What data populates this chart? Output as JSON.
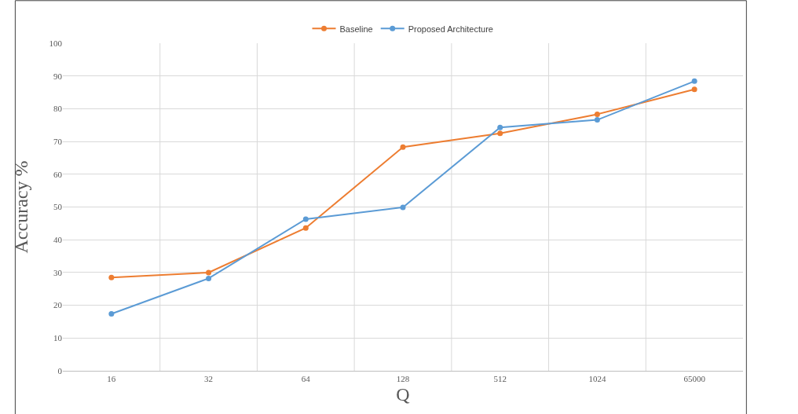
{
  "chart_data": {
    "type": "line",
    "xlabel": "Q",
    "ylabel": "Accuracy %",
    "categories": [
      "16",
      "32",
      "64",
      "128",
      "512",
      "1024",
      "65000"
    ],
    "series": [
      {
        "name": "Baseline",
        "color": "#ed7d31",
        "values": [
          28.5,
          30.0,
          43.6,
          68.3,
          72.5,
          78.3,
          85.9
        ]
      },
      {
        "name": "Proposed Architecture",
        "color": "#5b9bd5",
        "values": [
          17.4,
          28.2,
          46.3,
          49.9,
          74.3,
          76.6,
          88.4
        ]
      }
    ],
    "ylim": [
      0,
      100
    ],
    "yticks": [
      0,
      10,
      20,
      30,
      40,
      50,
      60,
      70,
      80,
      90,
      100
    ],
    "grid": true,
    "legend": "top",
    "marker": "circle",
    "line_style": "solid"
  }
}
